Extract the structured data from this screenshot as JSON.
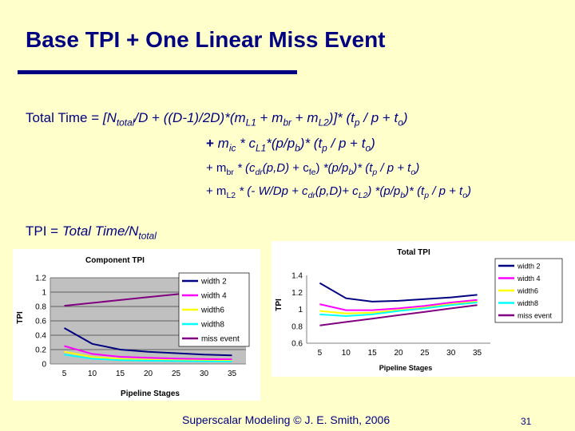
{
  "slide": {
    "title": "Base TPI + One Linear Miss Event",
    "footer": "Superscalar Modeling © J. E. Smith, 2006",
    "page_number": "31",
    "colors": {
      "background": "#FFFFCC",
      "text": "#000080"
    }
  },
  "equations": {
    "line1": "Total Time = [Ntotal/D + ((D-1)/2D)*(mL1 + mbr + mL2)]* (tp / p + to)",
    "line2": "+ mic * cL1*(p/pb)* (tp / p + to)",
    "line3": "+ mbr * (cdr(p,D) + cfe) *(p/pb)* (tp / p + to)",
    "line4": "+ mL2 * (- W/Dp + cdr(p,D)+ cL2) *(p/pb)* (tp / p + to)",
    "tpi": "TPI = Total Time/Ntotal"
  },
  "chart_data": [
    {
      "type": "line",
      "title": "Component TPI",
      "xlabel": "Pipeline Stages",
      "ylabel": "TPI",
      "x": [
        5,
        10,
        15,
        20,
        25,
        30,
        35
      ],
      "ylim": [
        0,
        1.2
      ],
      "yticks": [
        "0",
        "0.2",
        "0.4",
        "0.6",
        "0.8",
        "1",
        "1.2"
      ],
      "xticks": [
        "5",
        "10",
        "15",
        "20",
        "25",
        "30",
        "35"
      ],
      "legend_position": "right",
      "series": [
        {
          "name": "width 2",
          "color": "#000080",
          "values": [
            0.5,
            0.28,
            0.2,
            0.17,
            0.15,
            0.13,
            0.12
          ]
        },
        {
          "name": "width 4",
          "color": "#FF00FF",
          "values": [
            0.25,
            0.14,
            0.1,
            0.085,
            0.075,
            0.068,
            0.063
          ]
        },
        {
          "name": "width6",
          "color": "#FFFF00",
          "values": [
            0.17,
            0.095,
            0.07,
            0.058,
            0.05,
            0.046,
            0.043
          ]
        },
        {
          "name": "width8",
          "color": "#00FFFF",
          "values": [
            0.13,
            0.073,
            0.053,
            0.045,
            0.04,
            0.036,
            0.033
          ]
        },
        {
          "name": "miss event",
          "color": "#800080",
          "values": [
            0.81,
            0.85,
            0.89,
            0.93,
            0.97,
            1.01,
            1.05
          ]
        }
      ]
    },
    {
      "type": "line",
      "title": "Total TPI",
      "xlabel": "Pipeline Stages",
      "ylabel": "TPI",
      "x": [
        5,
        10,
        15,
        20,
        25,
        30,
        35
      ],
      "ylim": [
        0.6,
        1.4
      ],
      "yticks": [
        "0.6",
        "0.8",
        "1",
        "1.2",
        "1.4"
      ],
      "xticks": [
        "5",
        "10",
        "15",
        "20",
        "25",
        "30",
        "35"
      ],
      "legend_position": "right",
      "series": [
        {
          "name": "width 2",
          "color": "#000080",
          "values": [
            1.31,
            1.13,
            1.09,
            1.1,
            1.12,
            1.14,
            1.17
          ]
        },
        {
          "name": "width 4",
          "color": "#FF00FF",
          "values": [
            1.06,
            0.99,
            0.99,
            1.01,
            1.04,
            1.08,
            1.11
          ]
        },
        {
          "name": "width6",
          "color": "#FFFF00",
          "values": [
            0.98,
            0.95,
            0.96,
            0.99,
            1.02,
            1.06,
            1.09
          ]
        },
        {
          "name": "width8",
          "color": "#00FFFF",
          "values": [
            0.94,
            0.92,
            0.94,
            0.98,
            1.01,
            1.05,
            1.08
          ]
        },
        {
          "name": "miss event",
          "color": "#800080",
          "values": [
            0.81,
            0.85,
            0.89,
            0.93,
            0.97,
            1.01,
            1.05
          ]
        }
      ]
    }
  ]
}
